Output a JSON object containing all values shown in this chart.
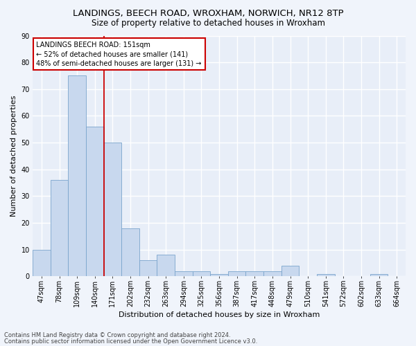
{
  "title": "LANDINGS, BEECH ROAD, WROXHAM, NORWICH, NR12 8TP",
  "subtitle": "Size of property relative to detached houses in Wroxham",
  "xlabel": "Distribution of detached houses by size in Wroxham",
  "ylabel": "Number of detached properties",
  "bar_color": "#c8d8ee",
  "bar_edge_color": "#7aa4cc",
  "categories": [
    "47sqm",
    "78sqm",
    "109sqm",
    "140sqm",
    "171sqm",
    "202sqm",
    "232sqm",
    "263sqm",
    "294sqm",
    "325sqm",
    "356sqm",
    "387sqm",
    "417sqm",
    "448sqm",
    "479sqm",
    "510sqm",
    "541sqm",
    "572sqm",
    "602sqm",
    "633sqm",
    "664sqm"
  ],
  "values": [
    10,
    36,
    75,
    56,
    50,
    18,
    6,
    8,
    2,
    2,
    1,
    2,
    2,
    2,
    4,
    0,
    1,
    0,
    0,
    1,
    0
  ],
  "ylim": [
    0,
    90
  ],
  "yticks": [
    0,
    10,
    20,
    30,
    40,
    50,
    60,
    70,
    80,
    90
  ],
  "property_line_x": 3.5,
  "annotation_line1": "LANDINGS BEECH ROAD: 151sqm",
  "annotation_line2": "← 52% of detached houses are smaller (141)",
  "annotation_line3": "48% of semi-detached houses are larger (131) →",
  "annotation_box_color": "#ffffff",
  "annotation_box_edge_color": "#cc0000",
  "red_line_color": "#cc0000",
  "footer1": "Contains HM Land Registry data © Crown copyright and database right 2024.",
  "footer2": "Contains public sector information licensed under the Open Government Licence v3.0.",
  "background_color": "#f0f4fb",
  "plot_background_color": "#e8eef8",
  "grid_color": "#ffffff",
  "title_fontsize": 9.5,
  "subtitle_fontsize": 8.5,
  "xlabel_fontsize": 8,
  "ylabel_fontsize": 8,
  "tick_fontsize": 7,
  "annotation_fontsize": 7,
  "footer_fontsize": 6
}
